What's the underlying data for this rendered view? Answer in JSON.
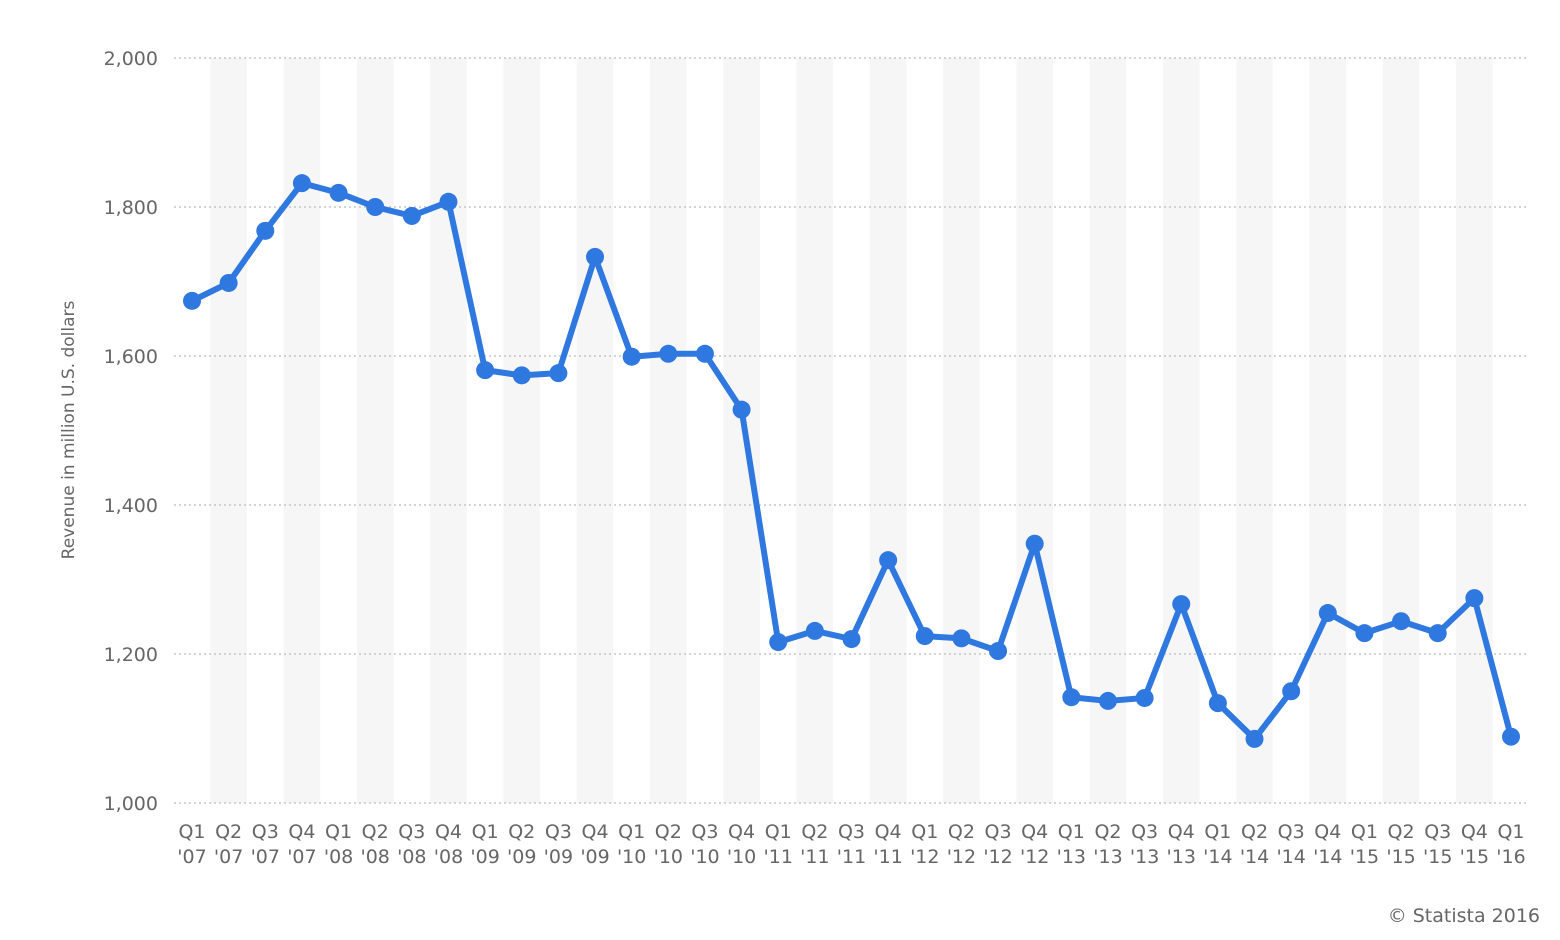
{
  "chart_data": {
    "type": "line",
    "y_label": "Revenue in million U.S. dollars",
    "source": "© Statista 2016",
    "categories": [
      "Q1 '07",
      "Q2 '07",
      "Q3 '07",
      "Q4 '07",
      "Q1 '08",
      "Q2 '08",
      "Q3 '08",
      "Q4 '08",
      "Q1 '09",
      "Q2 '09",
      "Q3 '09",
      "Q4 '09",
      "Q1 '10",
      "Q2 '10",
      "Q3 '10",
      "Q4 '10",
      "Q1 '11",
      "Q2 '11",
      "Q3 '11",
      "Q4 '11",
      "Q1 '12",
      "Q2 '12",
      "Q3 '12",
      "Q4 '12",
      "Q1 '13",
      "Q2 '13",
      "Q3 '13",
      "Q4 '13",
      "Q1 '14",
      "Q2 '14",
      "Q3 '14",
      "Q4 '14",
      "Q1 '15",
      "Q2 '15",
      "Q3 '15",
      "Q4 '15",
      "Q1 '16"
    ],
    "series": [
      {
        "name": "Revenue",
        "color": "#2f78df",
        "values": [
          1674,
          1698,
          1768,
          1832,
          1819,
          1800,
          1788,
          1807,
          1581,
          1574,
          1577,
          1733,
          1599,
          1603,
          1603,
          1528,
          1216,
          1231,
          1220,
          1326,
          1224,
          1221,
          1204,
          1348,
          1142,
          1137,
          1141,
          1267,
          1134,
          1086,
          1150,
          1255,
          1228,
          1244,
          1228,
          1275,
          1089
        ]
      }
    ],
    "ylim": [
      1000,
      2000
    ],
    "yticks": [
      {
        "value": 1000,
        "label": "1,000"
      },
      {
        "value": 1200,
        "label": "1,200"
      },
      {
        "value": 1400,
        "label": "1,400"
      },
      {
        "value": 1600,
        "label": "1,600"
      },
      {
        "value": 1800,
        "label": "1,800"
      },
      {
        "value": 2000,
        "label": "2,000"
      }
    ],
    "grid": true,
    "band_color": "#f6f6f6"
  }
}
